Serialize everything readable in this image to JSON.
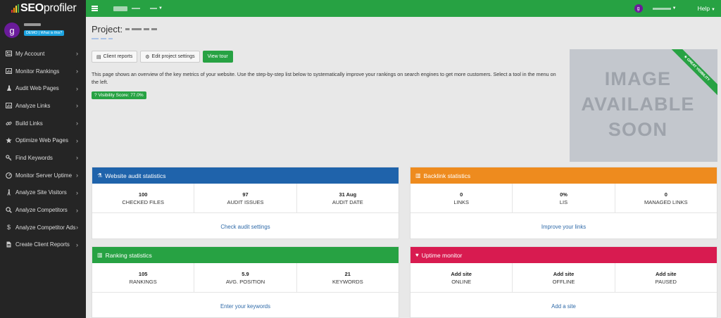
{
  "brand": {
    "logo_bold": "SEO",
    "logo_thin": "profiler"
  },
  "user": {
    "avatar_letter": "g",
    "demo_badge": "DEMO | What is this?"
  },
  "sidebar": {
    "items": [
      {
        "label": "My Account",
        "icon": "id-card-icon"
      },
      {
        "label": "Monitor Rankings",
        "icon": "bar-chart-icon"
      },
      {
        "label": "Audit Web Pages",
        "icon": "flask-icon"
      },
      {
        "label": "Analyze Links",
        "icon": "bar-chart-icon"
      },
      {
        "label": "Build Links",
        "icon": "link-icon"
      },
      {
        "label": "Optimize Web Pages",
        "icon": "star-icon"
      },
      {
        "label": "Find Keywords",
        "icon": "key-icon"
      },
      {
        "label": "Monitor Server Uptime",
        "icon": "gauge-icon"
      },
      {
        "label": "Analyze Site Visitors",
        "icon": "walking-person-icon"
      },
      {
        "label": "Analyze Competitors",
        "icon": "search-icon"
      },
      {
        "label": "Analyze Competitor Ads",
        "icon": "dollar-icon"
      },
      {
        "label": "Create Client Reports",
        "icon": "document-icon"
      }
    ]
  },
  "topbar": {
    "help_label": "Help"
  },
  "main": {
    "project_label": "Project:",
    "buttons": {
      "client_reports": "Client reports",
      "edit_project": "Edit project settings",
      "view_tour": "View tour"
    },
    "intro": "This page shows an overview of the key metrics of your website. Use the step-by-step list below to systematically improve your rankings on search engines to get more customers. Select a tool in the menu on the left.",
    "visibility_badge": "Visibility Score: 77.0%",
    "image_placeholder": {
      "line1": "IMAGE",
      "line2": "AVAILABLE",
      "line3": "SOON",
      "ribbon": "★ GREAT VISIBILITY"
    }
  },
  "panels": {
    "audit": {
      "title": "Website audit statistics",
      "color": "#1f63ab",
      "stats": [
        {
          "value": "100",
          "label": "CHECKED FILES"
        },
        {
          "value": "97",
          "label": "AUDIT ISSUES"
        },
        {
          "value": "31 Aug",
          "label": "AUDIT DATE"
        }
      ],
      "link": "Check audit settings"
    },
    "backlink": {
      "title": "Backlink statistics",
      "color": "#ee8b1e",
      "stats": [
        {
          "value": "0",
          "label": "LINKS"
        },
        {
          "value": "0%",
          "label": "LIS"
        },
        {
          "value": "0",
          "label": "MANAGED LINKS"
        }
      ],
      "link": "Improve your links"
    },
    "ranking": {
      "title": "Ranking statistics",
      "color": "#27a243",
      "stats": [
        {
          "value": "105",
          "label": "RANKINGS"
        },
        {
          "value": "5.9",
          "label": "AVG. POSITION"
        },
        {
          "value": "21",
          "label": "KEYWORDS"
        }
      ],
      "link": "Enter your keywords"
    },
    "uptime": {
      "title": "Uptime monitor",
      "color": "#d81b50",
      "stats": [
        {
          "value": "Add site",
          "label": "ONLINE"
        },
        {
          "value": "Add site",
          "label": "OFFLINE"
        },
        {
          "value": "Add site",
          "label": "PAUSED"
        }
      ],
      "link": "Add a site"
    }
  }
}
